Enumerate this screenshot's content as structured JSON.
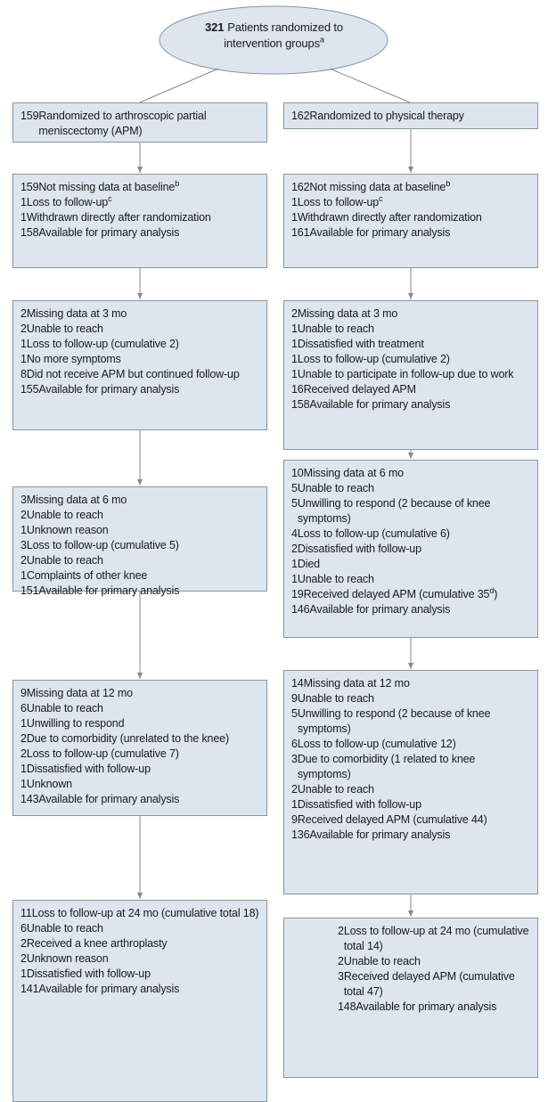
{
  "top": {
    "count": 321,
    "text": "Patients randomized to intervention groups",
    "sup": "a"
  },
  "columns": [
    {
      "boxes": [
        {
          "items": [
            {
              "count": 159,
              "text": "Randomized to arthroscopic partial meniscectomy (APM)"
            }
          ]
        },
        {
          "items": [
            {
              "count": 159,
              "text": "Not missing data at baseline",
              "sup": "b",
              "items": [
                {
                  "count": 1,
                  "text": "Loss to follow-up",
                  "sup": "c",
                  "items": [
                    {
                      "count": 1,
                      "text": "Withdrawn directly after randomization"
                    }
                  ]
                }
              ]
            },
            {
              "count": 158,
              "text": "Available for primary analysis"
            }
          ]
        },
        {
          "items": [
            {
              "count": 2,
              "text": "Missing data at 3 mo",
              "items": [
                {
                  "count": 2,
                  "text": "Unable to reach"
                }
              ]
            },
            {
              "count": 1,
              "text": "Loss to follow-up (cumulative 2)",
              "items": [
                {
                  "count": 1,
                  "text": "No more symptoms"
                }
              ]
            },
            {
              "count": 8,
              "text": "Did not receive APM but continued follow-up"
            },
            {
              "count": 155,
              "text": "Available for primary analysis"
            }
          ]
        },
        {
          "items": [
            {
              "count": 3,
              "text": "Missing data at 6 mo",
              "items": [
                {
                  "count": 2,
                  "text": "Unable to reach"
                },
                {
                  "count": 1,
                  "text": "Unknown reason"
                }
              ]
            },
            {
              "count": 3,
              "text": "Loss to follow-up (cumulative 5)",
              "items": [
                {
                  "count": 2,
                  "text": "Unable to reach"
                },
                {
                  "count": 1,
                  "text": "Complaints of other knee"
                }
              ]
            },
            {
              "count": 151,
              "text": "Available for primary analysis"
            }
          ]
        },
        {
          "items": [
            {
              "count": 9,
              "text": "Missing data at 12 mo",
              "items": [
                {
                  "count": 6,
                  "text": "Unable to reach"
                },
                {
                  "count": 1,
                  "text": "Unwilling to respond"
                },
                {
                  "count": 2,
                  "text": "Due to comorbidity (unrelated to the knee)"
                }
              ]
            },
            {
              "count": 2,
              "text": "Loss to follow-up (cumulative 7)",
              "items": [
                {
                  "count": 1,
                  "text": "Dissatisfied with follow-up"
                },
                {
                  "count": 1,
                  "text": "Unknown"
                }
              ]
            },
            {
              "count": 143,
              "text": "Available for primary analysis"
            }
          ]
        },
        {
          "items": [
            {
              "count": 11,
              "text": "Loss to follow-up at 24 mo (cumulative total 18)",
              "items": [
                {
                  "count": 6,
                  "text": "Unable to reach"
                },
                {
                  "count": 2,
                  "text": "Received a knee arthroplasty"
                },
                {
                  "count": 2,
                  "text": "Unknown reason"
                },
                {
                  "count": 1,
                  "text": "Dissatisfied with follow-up"
                }
              ]
            },
            {
              "count": 141,
              "text": "Available for primary analysis"
            }
          ]
        }
      ]
    },
    {
      "boxes": [
        {
          "items": [
            {
              "count": 162,
              "text": "Randomized to physical therapy"
            }
          ]
        },
        {
          "items": [
            {
              "count": 162,
              "text": "Not missing data at baseline",
              "sup": "b",
              "items": [
                {
                  "count": 1,
                  "text": "Loss to follow-up",
                  "sup": "c",
                  "items": [
                    {
                      "count": 1,
                      "text": "Withdrawn directly after randomization"
                    }
                  ]
                }
              ]
            },
            {
              "count": 161,
              "text": "Available for primary analysis"
            }
          ]
        },
        {
          "items": [
            {
              "count": 2,
              "text": "Missing data at 3 mo",
              "items": [
                {
                  "count": 1,
                  "text": "Unable to reach"
                },
                {
                  "count": 1,
                  "text": "Dissatisfied with treatment"
                }
              ]
            },
            {
              "count": 1,
              "text": "Loss to follow-up (cumulative 2)",
              "items": [
                {
                  "count": 1,
                  "text": "Unable to participate in follow-up due to work"
                }
              ]
            },
            {
              "count": 16,
              "text": "Received delayed APM"
            },
            {
              "count": 158,
              "text": "Available for primary analysis"
            }
          ]
        },
        {
          "items": [
            {
              "count": 10,
              "text": "Missing data at 6 mo",
              "items": [
                {
                  "count": 5,
                  "text": "Unable to reach"
                },
                {
                  "count": 5,
                  "text": "Unwilling to respond (2 because of knee symptoms)"
                }
              ]
            },
            {
              "count": 4,
              "text": "Loss to follow-up (cumulative 6)",
              "items": [
                {
                  "count": 2,
                  "text": "Dissatisfied with follow-up"
                },
                {
                  "count": 1,
                  "text": "Died"
                },
                {
                  "count": 1,
                  "text": "Unable to reach"
                }
              ]
            },
            {
              "count": 19,
              "text": "Received delayed APM (cumulative 35",
              "sup": "d",
              "after": ")"
            },
            {
              "count": 146,
              "text": "Available for primary analysis"
            }
          ]
        },
        {
          "items": [
            {
              "count": 14,
              "text": "Missing data at 12 mo",
              "items": [
                {
                  "count": 9,
                  "text": "Unable to reach"
                },
                {
                  "count": 5,
                  "text": "Unwilling to respond (2 because of knee symptoms)"
                }
              ]
            },
            {
              "count": 6,
              "text": "Loss to follow-up (cumulative 12)",
              "items": [
                {
                  "count": 3,
                  "text": "Due to comorbidity (1 related to knee symptoms)"
                },
                {
                  "count": 2,
                  "text": "Unable to reach"
                },
                {
                  "count": 1,
                  "text": "Dissatisfied with follow-up"
                }
              ]
            },
            {
              "count": 9,
              "text": "Received delayed APM (cumulative 44)"
            },
            {
              "count": 136,
              "text": "Available for primary analysis"
            }
          ]
        },
        {
          "items": [
            {
              "count": 2,
              "text": "Loss to follow-up at 24 mo (cumulative total 14)",
              "items": [
                {
                  "count": 2,
                  "text": "Unable to reach"
                }
              ]
            },
            {
              "count": 3,
              "text": "Received delayed APM (cumulative total 47)"
            },
            {
              "count": 148,
              "text": "Available for primary analysis"
            }
          ]
        }
      ]
    }
  ]
}
